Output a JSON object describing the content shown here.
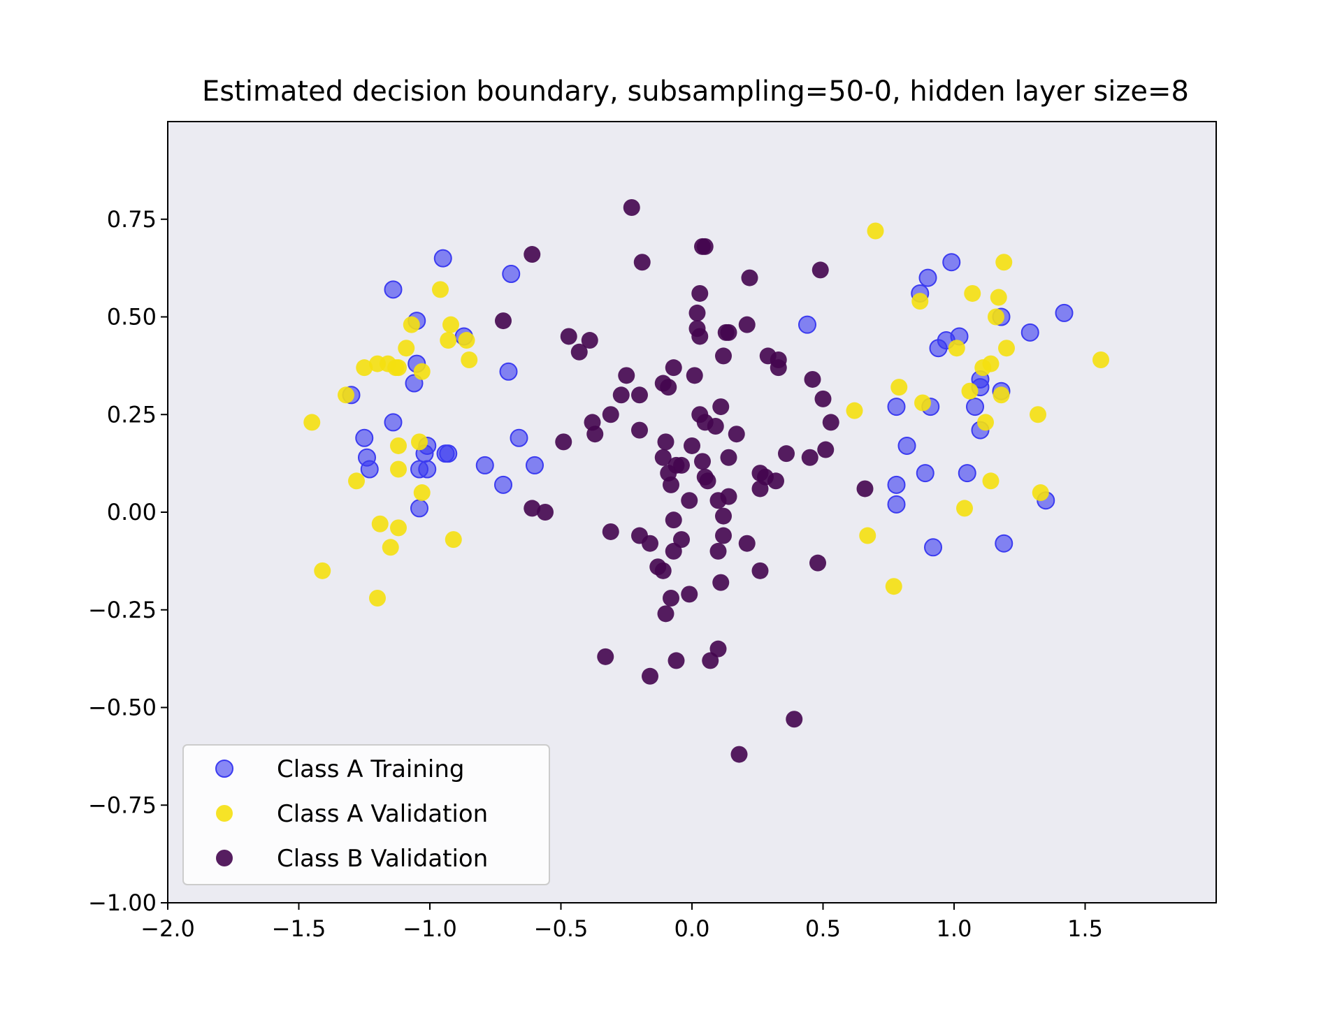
{
  "chart_data": {
    "type": "scatter",
    "title": "Estimated decision boundary, subsampling=50-0, hidden layer size=8",
    "xlabel": "",
    "ylabel": "",
    "xlim": [
      -2.0,
      2.0
    ],
    "ylim": [
      -1.0,
      1.0
    ],
    "xticks": [
      -2.0,
      -1.5,
      -1.0,
      -0.5,
      0.0,
      0.5,
      1.0,
      1.5
    ],
    "xtick_labels": [
      "−2.0",
      "−1.5",
      "−1.0",
      "−0.5",
      "0.0",
      "0.5",
      "1.0",
      "1.5"
    ],
    "yticks": [
      0.75,
      0.5,
      0.25,
      0.0,
      -0.25,
      -0.5,
      -0.75,
      -1.0
    ],
    "ytick_labels": [
      "0.75",
      "0.50",
      "0.25",
      "0.00",
      "−0.25",
      "−0.50",
      "−0.75",
      "−1.00"
    ],
    "grid": false,
    "plot_background": "#ebebf2",
    "legend_position": "lower-left",
    "series": [
      {
        "name": "Class A Training",
        "color": "#3b3bf0",
        "x": [
          -1.14,
          -0.95,
          -0.69,
          -1.05,
          -0.87,
          -1.05,
          -1.06,
          -0.7,
          -1.3,
          -1.14,
          -1.25,
          -1.24,
          -1.23,
          -0.66,
          -1.01,
          -1.02,
          -0.94,
          -0.93,
          -1.04,
          -1.01,
          -0.79,
          -0.6,
          -0.72,
          -1.04,
          0.44,
          0.99,
          0.9,
          0.87,
          0.97,
          1.02,
          0.94,
          1.18,
          1.29,
          1.42,
          1.1,
          1.1,
          1.18,
          0.78,
          0.91,
          1.08,
          1.1,
          0.82,
          0.89,
          0.78,
          1.05,
          0.78,
          1.35,
          0.92,
          1.19
        ],
        "y": [
          0.57,
          0.65,
          0.61,
          0.49,
          0.45,
          0.38,
          0.33,
          0.36,
          0.3,
          0.23,
          0.19,
          0.14,
          0.11,
          0.19,
          0.17,
          0.15,
          0.15,
          0.15,
          0.11,
          0.11,
          0.12,
          0.12,
          0.07,
          0.01,
          0.48,
          0.64,
          0.6,
          0.56,
          0.44,
          0.45,
          0.42,
          0.5,
          0.46,
          0.51,
          0.34,
          0.32,
          0.31,
          0.27,
          0.27,
          0.27,
          0.21,
          0.17,
          0.1,
          0.07,
          0.1,
          0.02,
          0.03,
          -0.09,
          -0.08
        ]
      },
      {
        "name": "Class A Validation",
        "color": "#f5e00f",
        "x": [
          -0.96,
          -1.07,
          -0.92,
          -0.93,
          -0.86,
          -1.09,
          -1.12,
          -1.16,
          -1.2,
          -1.25,
          -1.03,
          -1.13,
          -0.85,
          -1.32,
          -1.45,
          -1.04,
          -1.12,
          -1.12,
          -1.28,
          -1.03,
          -1.19,
          -1.12,
          -0.91,
          -1.15,
          -1.41,
          -1.2,
          0.7,
          1.19,
          0.87,
          1.07,
          1.17,
          1.16,
          1.2,
          1.01,
          1.14,
          1.56,
          1.11,
          0.79,
          1.06,
          1.18,
          0.88,
          0.62,
          1.12,
          1.32,
          1.14,
          1.33,
          1.04,
          0.67,
          0.77
        ],
        "y": [
          0.57,
          0.48,
          0.48,
          0.44,
          0.44,
          0.42,
          0.37,
          0.38,
          0.38,
          0.37,
          0.36,
          0.37,
          0.39,
          0.3,
          0.23,
          0.18,
          0.17,
          0.11,
          0.08,
          0.05,
          -0.03,
          -0.04,
          -0.07,
          -0.09,
          -0.15,
          -0.22,
          0.72,
          0.64,
          0.54,
          0.56,
          0.55,
          0.5,
          0.42,
          0.42,
          0.38,
          0.39,
          0.37,
          0.32,
          0.31,
          0.3,
          0.28,
          0.26,
          0.23,
          0.25,
          0.08,
          0.05,
          0.01,
          -0.06,
          -0.19
        ]
      },
      {
        "name": "Class B Validation",
        "color": "#44064f",
        "x": [
          -0.23,
          -0.19,
          -0.61,
          0.04,
          0.05,
          0.03,
          0.49,
          0.22,
          0.02,
          0.02,
          -0.72,
          0.03,
          0.13,
          0.14,
          0.21,
          -0.47,
          -0.39,
          -0.43,
          0.12,
          0.29,
          0.33,
          0.33,
          -0.07,
          -0.25,
          0.01,
          -0.11,
          -0.09,
          0.46,
          -0.27,
          -0.2,
          0.5,
          0.11,
          0.03,
          0.05,
          -0.38,
          -0.2,
          -0.31,
          -0.37,
          0.09,
          0.17,
          0.53,
          -0.49,
          -0.1,
          0.0,
          0.51,
          0.36,
          0.14,
          -0.11,
          0.04,
          -0.04,
          0.26,
          0.05,
          -0.09,
          0.28,
          -0.06,
          0.32,
          0.45,
          0.06,
          0.26,
          0.66,
          -0.08,
          0.14,
          0.1,
          -0.01,
          -0.61,
          -0.56,
          0.12,
          -0.07,
          -0.31,
          0.12,
          -0.2,
          -0.16,
          -0.04,
          0.21,
          -0.07,
          0.1,
          -0.13,
          0.48,
          0.26,
          -0.11,
          0.11,
          -0.01,
          -0.08,
          -0.1,
          0.1,
          -0.33,
          0.07,
          -0.06,
          -0.16,
          0.39,
          0.18
        ],
        "y": [
          0.78,
          0.64,
          0.66,
          0.68,
          0.68,
          0.56,
          0.62,
          0.6,
          0.51,
          0.47,
          0.49,
          0.45,
          0.46,
          0.46,
          0.48,
          0.45,
          0.44,
          0.41,
          0.4,
          0.4,
          0.39,
          0.37,
          0.37,
          0.35,
          0.35,
          0.33,
          0.32,
          0.34,
          0.3,
          0.3,
          0.29,
          0.27,
          0.25,
          0.23,
          0.23,
          0.21,
          0.25,
          0.2,
          0.22,
          0.2,
          0.23,
          0.18,
          0.18,
          0.17,
          0.16,
          0.15,
          0.14,
          0.14,
          0.13,
          0.12,
          0.1,
          0.09,
          0.1,
          0.09,
          0.12,
          0.08,
          0.14,
          0.08,
          0.06,
          0.06,
          0.07,
          0.04,
          0.03,
          0.03,
          0.01,
          0.0,
          -0.01,
          -0.02,
          -0.05,
          -0.06,
          -0.06,
          -0.08,
          -0.07,
          -0.08,
          -0.1,
          -0.1,
          -0.14,
          -0.13,
          -0.15,
          -0.15,
          -0.18,
          -0.21,
          -0.22,
          -0.26,
          -0.35,
          -0.37,
          -0.38,
          -0.38,
          -0.42,
          -0.53,
          -0.62
        ]
      }
    ]
  }
}
